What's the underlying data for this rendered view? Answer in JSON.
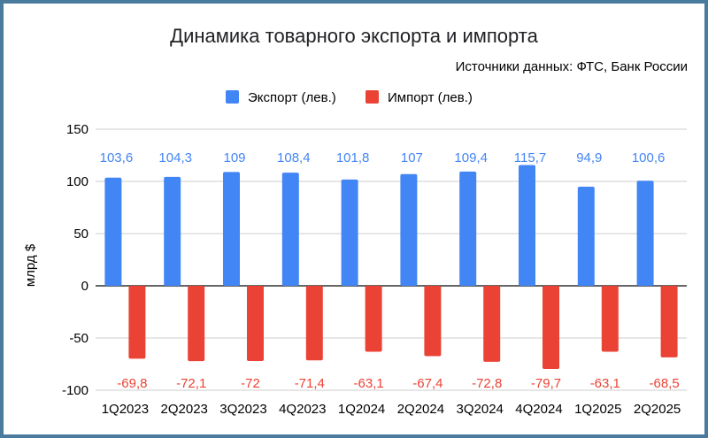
{
  "chart_data": {
    "type": "bar",
    "title": "Динамика товарного экспорта и импорта",
    "subtitle": "Источники данных: ФТС, Банк России",
    "xlabel": "",
    "ylabel": "млрд $",
    "ylim": [
      -100,
      150
    ],
    "yticks": [
      "150",
      "100",
      "50",
      "0",
      "-50",
      "-100"
    ],
    "grid": true,
    "legend_position": "top",
    "categories": [
      "1Q2023",
      "2Q2023",
      "3Q2023",
      "4Q2023",
      "1Q2024",
      "2Q2024",
      "3Q2024",
      "4Q2024",
      "1Q2025",
      "2Q2025"
    ],
    "series": [
      {
        "name": "Экспорт (лев.)",
        "color": "#4285f4",
        "values": [
          103.6,
          104.3,
          109,
          108.4,
          101.8,
          107,
          109.4,
          115.7,
          94.9,
          100.6
        ],
        "labels": [
          "103,6",
          "104,3",
          "109",
          "108,4",
          "101,8",
          "107",
          "109,4",
          "115,7",
          "94,9",
          "100,6"
        ]
      },
      {
        "name": "Импорт (лев.)",
        "color": "#ea4335",
        "values": [
          -69.8,
          -72.1,
          -72,
          -71.4,
          -63.1,
          -67.4,
          -72.8,
          -79.7,
          -63.1,
          -68.5
        ],
        "labels": [
          "-69,8",
          "-72,1",
          "-72",
          "-71,4",
          "-63,1",
          "-67,4",
          "-72,8",
          "-79,7",
          "-63,1",
          "-68,5"
        ]
      }
    ]
  }
}
